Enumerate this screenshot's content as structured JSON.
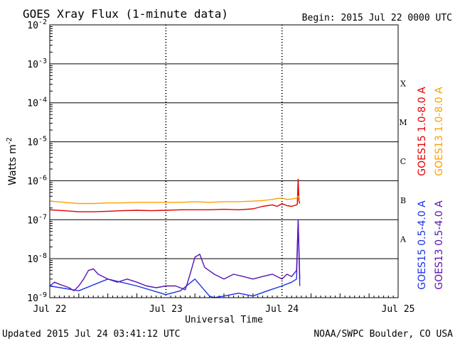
{
  "header": {
    "title": "GOES Xray Flux (1-minute data)",
    "begin": "Begin:  2015 Jul 22 0000 UTC"
  },
  "footer": {
    "updated": "Updated 2015 Jul 24 03:41:12 UTC",
    "credit": "NOAA/SWPC Boulder, CO USA"
  },
  "chart_data": {
    "type": "line",
    "title": "GOES Xray Flux (1-minute data)",
    "xlabel": "Universal Time",
    "ylabel": "Watts m",
    "ylabel_superscript": "-2",
    "yscale": "log",
    "ylim": [
      1e-09,
      0.01
    ],
    "xlim": [
      "2015-07-22 00:00",
      "2015-07-25 00:00"
    ],
    "x_ticks": [
      "Jul 22",
      "Jul 23",
      "Jul 24",
      "Jul 25"
    ],
    "y_ticks": [
      {
        "base": "10",
        "exp": "-2",
        "value": 0.01
      },
      {
        "base": "10",
        "exp": "-3",
        "value": 0.001
      },
      {
        "base": "10",
        "exp": "-4",
        "value": 0.0001
      },
      {
        "base": "10",
        "exp": "-5",
        "value": 1e-05
      },
      {
        "base": "10",
        "exp": "-6",
        "value": 1e-06
      },
      {
        "base": "10",
        "exp": "-7",
        "value": 1e-07
      },
      {
        "base": "10",
        "exp": "-8",
        "value": 1e-08
      },
      {
        "base": "10",
        "exp": "-9",
        "value": 1e-09
      }
    ],
    "flare_classes": [
      {
        "label": "X",
        "lower": 0.0001
      },
      {
        "label": "M",
        "lower": 1e-05
      },
      {
        "label": "C",
        "lower": 1e-06
      },
      {
        "label": "B",
        "lower": 1e-07
      },
      {
        "label": "A",
        "lower": 1e-08
      }
    ],
    "grid": true,
    "legend_placement": "right-outside",
    "series": [
      {
        "name": "GOES15 1.0-8.0 A",
        "color": "#e00000",
        "x": [
          "2015-07-22 00:00",
          "2015-07-22 03:00",
          "2015-07-22 06:00",
          "2015-07-22 09:00",
          "2015-07-22 12:00",
          "2015-07-22 15:00",
          "2015-07-22 18:00",
          "2015-07-22 21:00",
          "2015-07-23 00:00",
          "2015-07-23 03:00",
          "2015-07-23 06:00",
          "2015-07-23 09:00",
          "2015-07-23 12:00",
          "2015-07-23 15:00",
          "2015-07-23 18:00",
          "2015-07-23 20:00",
          "2015-07-23 22:00",
          "2015-07-23 23:00",
          "2015-07-24 00:00",
          "2015-07-24 01:00",
          "2015-07-24 02:00",
          "2015-07-24 03:00",
          "2015-07-24 03:10",
          "2015-07-24 03:20",
          "2015-07-24 03:30",
          "2015-07-24 03:41"
        ],
        "y": [
          1.8e-07,
          1.7e-07,
          1.6e-07,
          1.6e-07,
          1.65e-07,
          1.7e-07,
          1.75e-07,
          1.7e-07,
          1.75e-07,
          1.8e-07,
          1.8e-07,
          1.8e-07,
          1.85e-07,
          1.8e-07,
          1.9e-07,
          2.2e-07,
          2.4e-07,
          2.2e-07,
          2.6e-07,
          2.3e-07,
          2.2e-07,
          2.4e-07,
          2.5e-07,
          1.1e-06,
          3e-07,
          2.6e-07
        ]
      },
      {
        "name": "GOES13 1.0-8.0 A",
        "color": "#ff9f00",
        "x": [
          "2015-07-22 00:00",
          "2015-07-22 03:00",
          "2015-07-22 06:00",
          "2015-07-22 09:00",
          "2015-07-22 12:00",
          "2015-07-22 15:00",
          "2015-07-22 18:00",
          "2015-07-22 21:00",
          "2015-07-23 00:00",
          "2015-07-23 03:00",
          "2015-07-23 06:00",
          "2015-07-23 09:00",
          "2015-07-23 12:00",
          "2015-07-23 15:00",
          "2015-07-23 18:00",
          "2015-07-23 20:00",
          "2015-07-23 22:00",
          "2015-07-23 23:00",
          "2015-07-24 00:00",
          "2015-07-24 01:00",
          "2015-07-24 02:00",
          "2015-07-24 03:00",
          "2015-07-24 03:20",
          "2015-07-24 03:41"
        ],
        "y": [
          3e-07,
          2.8e-07,
          2.6e-07,
          2.6e-07,
          2.7e-07,
          2.7e-07,
          2.8e-07,
          2.8e-07,
          2.8e-07,
          2.8e-07,
          2.9e-07,
          2.8e-07,
          2.9e-07,
          2.9e-07,
          3e-07,
          3.1e-07,
          3.3e-07,
          3.5e-07,
          3.6e-07,
          3.3e-07,
          3.4e-07,
          3.6e-07,
          4e-07,
          3.5e-07
        ]
      },
      {
        "name": "GOES15 0.5-4.0 A",
        "color": "#1a32e6",
        "x": [
          "2015-07-22 00:00",
          "2015-07-22 06:00",
          "2015-07-22 12:00",
          "2015-07-22 18:00",
          "2015-07-23 00:00",
          "2015-07-23 03:00",
          "2015-07-23 06:00",
          "2015-07-23 09:00",
          "2015-07-23 10:00",
          "2015-07-23 12:00",
          "2015-07-23 15:00",
          "2015-07-23 18:00",
          "2015-07-23 21:00",
          "2015-07-24 00:00",
          "2015-07-24 02:00",
          "2015-07-24 03:00",
          "2015-07-24 03:20",
          "2015-07-24 03:41"
        ],
        "y": [
          2e-09,
          1.5e-09,
          3e-09,
          2e-09,
          1.2e-09,
          1.5e-09,
          3e-09,
          1.1e-09,
          1e-09,
          1.1e-09,
          1.3e-09,
          1.1e-09,
          1.5e-09,
          2e-09,
          2.5e-09,
          3e-09,
          9e-08,
          2e-09
        ]
      },
      {
        "name": "GOES13 0.5-4.0 A",
        "color": "#5a14b4",
        "x": [
          "2015-07-22 00:00",
          "2015-07-22 01:00",
          "2015-07-22 02:00",
          "2015-07-22 03:00",
          "2015-07-22 04:00",
          "2015-07-22 05:00",
          "2015-07-22 06:00",
          "2015-07-22 07:00",
          "2015-07-22 08:00",
          "2015-07-22 09:00",
          "2015-07-22 10:00",
          "2015-07-22 12:00",
          "2015-07-22 14:00",
          "2015-07-22 16:00",
          "2015-07-22 18:00",
          "2015-07-22 20:00",
          "2015-07-22 22:00",
          "2015-07-23 00:00",
          "2015-07-23 02:00",
          "2015-07-23 04:00",
          "2015-07-23 05:00",
          "2015-07-23 06:00",
          "2015-07-23 07:00",
          "2015-07-23 08:00",
          "2015-07-23 10:00",
          "2015-07-23 12:00",
          "2015-07-23 14:00",
          "2015-07-23 16:00",
          "2015-07-23 18:00",
          "2015-07-23 20:00",
          "2015-07-23 22:00",
          "2015-07-24 00:00",
          "2015-07-24 01:00",
          "2015-07-24 02:00",
          "2015-07-24 03:00",
          "2015-07-24 03:20",
          "2015-07-24 03:41"
        ],
        "y": [
          2e-09,
          2.5e-09,
          2.2e-09,
          2e-09,
          1.8e-09,
          1.5e-09,
          2e-09,
          3e-09,
          5e-09,
          5.5e-09,
          4e-09,
          3e-09,
          2.5e-09,
          3e-09,
          2.5e-09,
          2e-09,
          1.8e-09,
          2e-09,
          2e-09,
          1.6e-09,
          4e-09,
          1.1e-08,
          1.3e-08,
          6e-09,
          4e-09,
          3e-09,
          4e-09,
          3.5e-09,
          3e-09,
          3.5e-09,
          4e-09,
          3e-09,
          4e-09,
          3.5e-09,
          5e-09,
          1e-07,
          3e-09
        ]
      }
    ]
  }
}
